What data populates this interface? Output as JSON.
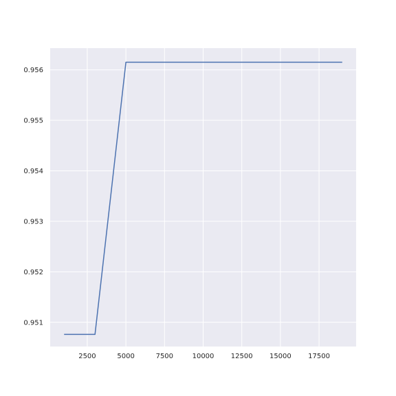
{
  "chart_data": {
    "type": "line",
    "title": "",
    "xlabel": "",
    "ylabel": "",
    "grid": true,
    "style": "seaborn-darkgrid",
    "colors": {
      "plot_background": "#eaeaf2",
      "grid": "#ffffff",
      "line": "#4c72b0",
      "text": "#262626"
    },
    "xlim": [
      100,
      19900
    ],
    "ylim": [
      0.95052,
      0.95643
    ],
    "x_ticks": [
      2500,
      5000,
      7500,
      10000,
      12500,
      15000,
      17500
    ],
    "y_ticks": [
      0.951,
      0.952,
      0.953,
      0.954,
      0.955,
      0.956
    ],
    "x_tick_labels": [
      "2500",
      "5000",
      "7500",
      "10000",
      "12500",
      "15000",
      "17500"
    ],
    "y_tick_labels": [
      "0.951",
      "0.952",
      "0.953",
      "0.954",
      "0.955",
      "0.956"
    ],
    "series": [
      {
        "x": [
          1000,
          3000,
          5000,
          7000,
          9000,
          11000,
          13000,
          15000,
          17000,
          19000
        ],
        "y": [
          0.95076,
          0.95076,
          0.95615,
          0.95615,
          0.95615,
          0.95615,
          0.95615,
          0.95615,
          0.95615,
          0.95615
        ]
      }
    ]
  }
}
